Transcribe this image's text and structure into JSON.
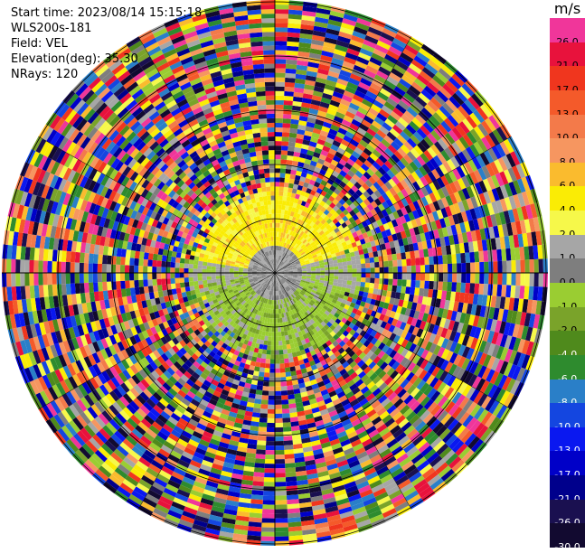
{
  "header": {
    "start_time": "Start time: 2023/08/14 15:15:18",
    "station": "WLS200s-181",
    "field": "Field: VEL",
    "elevation": "Elevation(deg): 35.30",
    "nrays": "NRays: 120"
  },
  "colorbar": {
    "unit": "m/s",
    "levels": [
      {
        "label": "26.0",
        "color": "#f0369a"
      },
      {
        "label": "21.0",
        "color": "#e8123c"
      },
      {
        "label": "17.0",
        "color": "#f0361e"
      },
      {
        "label": "13.0",
        "color": "#f45a2a"
      },
      {
        "label": "10.0",
        "color": "#f37a4a"
      },
      {
        "label": "8.0",
        "color": "#f69660"
      },
      {
        "label": "6.0",
        "color": "#fabb2e"
      },
      {
        "label": "4.0",
        "color": "#faec05"
      },
      {
        "label": "2.0",
        "color": "#f6f84a"
      },
      {
        "label": "1.0",
        "color": "#a6a6a6"
      },
      {
        "label": "0.0",
        "color": "#7e7e7e"
      },
      {
        "label": "-1.0",
        "color": "#9acd32"
      },
      {
        "label": "-2.0",
        "color": "#7aa32a"
      },
      {
        "label": "-4.0",
        "color": "#4f8a1c"
      },
      {
        "label": "-6.0",
        "color": "#2e8b2e"
      },
      {
        "label": "-8.0",
        "color": "#2a7fc8"
      },
      {
        "label": "-10.0",
        "color": "#1446e0"
      },
      {
        "label": "-13.0",
        "color": "#0a18f0"
      },
      {
        "label": "-17.0",
        "color": "#0000c8"
      },
      {
        "label": "-21.0",
        "color": "#00008c"
      },
      {
        "label": "-26.0",
        "color": "#1a1050"
      },
      {
        "label": "-30.0",
        "color": "#120a30"
      }
    ]
  },
  "range_rings": [
    "1.00km",
    "2.00km",
    "3.00km",
    "4.00km"
  ]
}
